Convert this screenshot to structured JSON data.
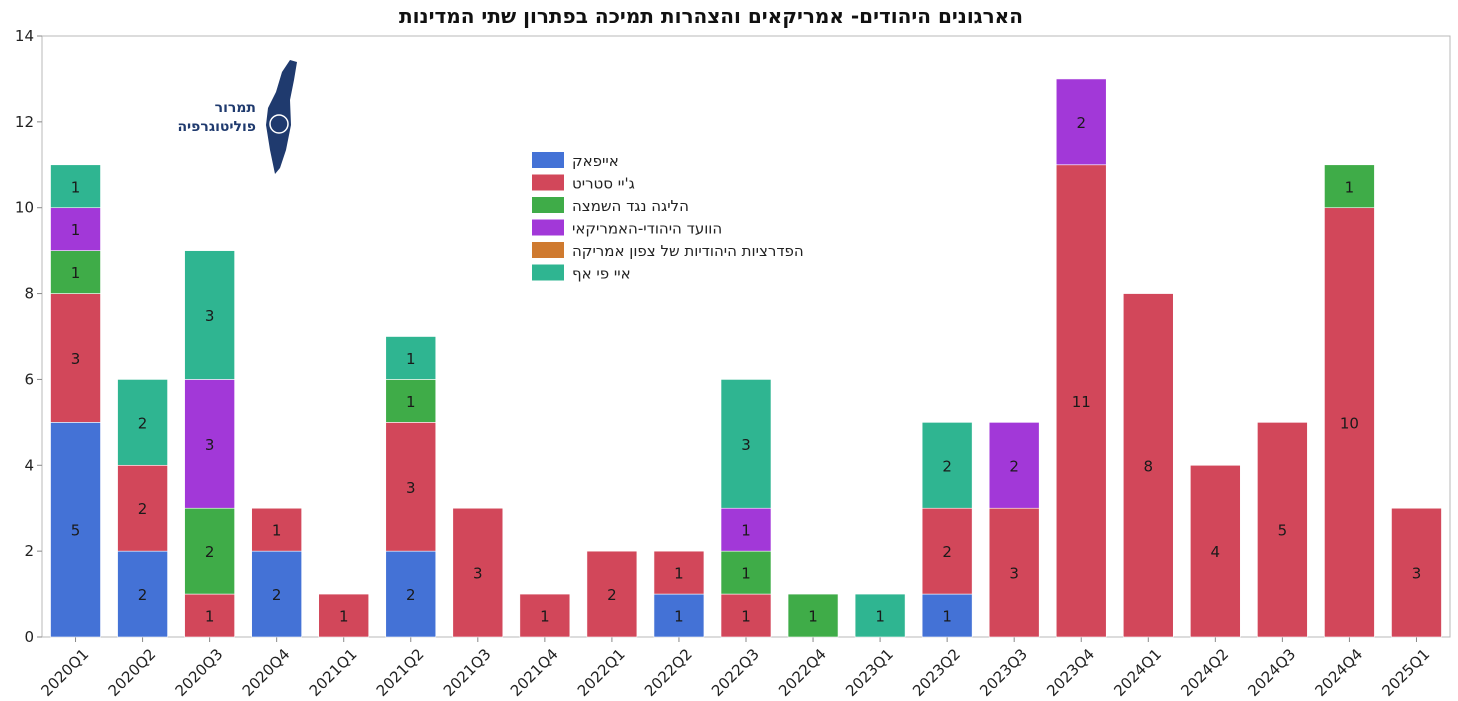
{
  "chart_data": {
    "type": "bar",
    "stacked": true,
    "title": "הארגונים היהודים- אמריקאים והצהרות תמיכה בפתרון שתי המדינות",
    "xlabel": "",
    "ylabel": "",
    "ylim": [
      0,
      14
    ],
    "yticks": [
      0,
      2,
      4,
      6,
      8,
      10,
      12,
      14
    ],
    "grid": false,
    "legend_position": "top-center",
    "categories": [
      "2020Q1",
      "2020Q2",
      "2020Q3",
      "2020Q4",
      "2021Q1",
      "2021Q2",
      "2021Q3",
      "2021Q4",
      "2022Q1",
      "2022Q2",
      "2022Q3",
      "2022Q4",
      "2023Q1",
      "2023Q2",
      "2023Q3",
      "2023Q4",
      "2024Q1",
      "2024Q2",
      "2024Q3",
      "2024Q4",
      "2025Q1"
    ],
    "series": [
      {
        "name": "אייפאק",
        "color": "#4472d6",
        "values": [
          5,
          2,
          0,
          2,
          0,
          2,
          0,
          0,
          0,
          1,
          0,
          0,
          0,
          1,
          0,
          0,
          0,
          0,
          0,
          0,
          0
        ]
      },
      {
        "name": "ג'יי סטריט",
        "color": "#d2475a",
        "values": [
          3,
          2,
          1,
          1,
          1,
          3,
          3,
          1,
          2,
          1,
          1,
          0,
          0,
          2,
          3,
          11,
          8,
          4,
          5,
          10,
          3
        ]
      },
      {
        "name": "הליגה נגד השמצה",
        "color": "#3fac48",
        "values": [
          1,
          0,
          2,
          0,
          0,
          1,
          0,
          0,
          0,
          0,
          1,
          1,
          0,
          0,
          0,
          0,
          0,
          0,
          0,
          1,
          0
        ]
      },
      {
        "name": "הוועד היהודי-האמריקאי",
        "color": "#a238d8",
        "values": [
          1,
          0,
          3,
          0,
          0,
          0,
          0,
          0,
          0,
          0,
          1,
          0,
          0,
          0,
          2,
          2,
          0,
          0,
          0,
          0,
          0
        ]
      },
      {
        "name": "הפדרציות היהודיות של צפון אמריקה",
        "color": "#cf7a2f",
        "values": [
          0,
          0,
          0,
          0,
          0,
          0,
          0,
          0,
          0,
          0,
          0,
          0,
          0,
          0,
          0,
          0,
          0,
          0,
          0,
          0,
          0
        ]
      },
      {
        "name": "איי פי אף",
        "color": "#2fb591",
        "values": [
          1,
          2,
          3,
          0,
          0,
          1,
          0,
          0,
          0,
          0,
          3,
          0,
          1,
          2,
          0,
          0,
          0,
          0,
          0,
          0,
          0
        ]
      }
    ]
  },
  "logo": {
    "line1": "תמרור",
    "line2": "פוליטוגרפיה",
    "color": "#1f3a6e",
    "icon": "israel-map-icon"
  }
}
